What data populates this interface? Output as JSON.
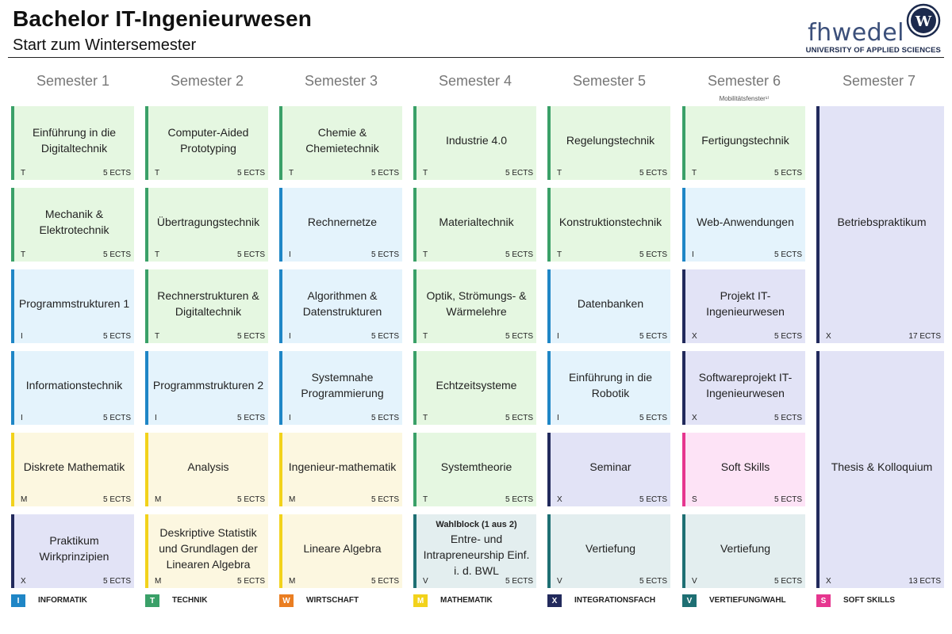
{
  "header": {
    "title": "Bachelor IT-Ingenieurwesen",
    "subtitle": "Start zum Wintersemester"
  },
  "logo": {
    "word_h": "fh",
    "word_rest": "wedel",
    "seal_letter": "W",
    "subtitle": "UNIVERSITY OF APPLIED SCIENCES"
  },
  "semesters": [
    {
      "label": "Semester 1"
    },
    {
      "label": "Semester 2"
    },
    {
      "label": "Semester 3"
    },
    {
      "label": "Semester 4"
    },
    {
      "label": "Semester 5"
    },
    {
      "label": "Semester 6",
      "note": "Mobilitätsfenster¹⁾"
    },
    {
      "label": "Semester 7"
    }
  ],
  "columns": [
    [
      {
        "name": "Einführung in die Digitaltechnik",
        "cat": "T",
        "ects": "5 ECTS"
      },
      {
        "name": "Mechanik & Elektrotechnik",
        "cat": "T",
        "ects": "5 ECTS"
      },
      {
        "name": "Programmstrukturen 1",
        "cat": "I",
        "ects": "5 ECTS"
      },
      {
        "name": "Informationstechnik",
        "cat": "I",
        "ects": "5 ECTS"
      },
      {
        "name": "Diskrete Mathematik",
        "cat": "M",
        "ects": "5 ECTS"
      },
      {
        "name": "Praktikum Wirkprinzipien",
        "cat": "X",
        "ects": "5 ECTS"
      }
    ],
    [
      {
        "name": "Computer-Aided Prototyping",
        "cat": "T",
        "ects": "5 ECTS"
      },
      {
        "name": "Übertragungstechnik",
        "cat": "T",
        "ects": "5 ECTS"
      },
      {
        "name": "Rechnerstrukturen & Digitaltechnik",
        "cat": "T",
        "ects": "5 ECTS"
      },
      {
        "name": "Programmstrukturen 2",
        "cat": "I",
        "ects": "5 ECTS"
      },
      {
        "name": "Analysis",
        "cat": "M",
        "ects": "5 ECTS"
      },
      {
        "name": "Deskriptive Statistik und Grundlagen der Linearen Algebra",
        "cat": "M",
        "ects": "5 ECTS"
      }
    ],
    [
      {
        "name": "Chemie & Chemietechnik",
        "cat": "T",
        "ects": "5 ECTS"
      },
      {
        "name": "Rechnernetze",
        "cat": "I",
        "ects": "5 ECTS"
      },
      {
        "name": "Algorithmen & Datenstrukturen",
        "cat": "I",
        "ects": "5 ECTS"
      },
      {
        "name": "Systemnahe Programmierung",
        "cat": "I",
        "ects": "5 ECTS"
      },
      {
        "name": "Ingenieur-mathematik",
        "cat": "M",
        "ects": "5 ECTS"
      },
      {
        "name": "Lineare Algebra",
        "cat": "M",
        "ects": "5 ECTS"
      }
    ],
    [
      {
        "name": "Industrie 4.0",
        "cat": "T",
        "ects": "5 ECTS"
      },
      {
        "name": "Materialtechnik",
        "cat": "T",
        "ects": "5 ECTS"
      },
      {
        "name": "Optik, Strömungs- & Wärmelehre",
        "cat": "T",
        "ects": "5 ECTS"
      },
      {
        "name": "Echtzeitsysteme",
        "cat": "T",
        "ects": "5 ECTS"
      },
      {
        "name": "Systemtheorie",
        "cat": "T",
        "ects": "5 ECTS"
      },
      {
        "name": "Entre- und Intrapreneurship Einf. i. d. BWL",
        "note": "Wahlblock (1 aus 2)",
        "cat": "V",
        "ects": "5 ECTS"
      }
    ],
    [
      {
        "name": "Regelungstechnik",
        "cat": "T",
        "ects": "5 ECTS"
      },
      {
        "name": "Konstruktionstechnik",
        "cat": "T",
        "ects": "5 ECTS"
      },
      {
        "name": "Datenbanken",
        "cat": "I",
        "ects": "5 ECTS"
      },
      {
        "name": "Einführung in die Robotik",
        "cat": "I",
        "ects": "5 ECTS"
      },
      {
        "name": "Seminar",
        "cat": "X",
        "ects": "5 ECTS"
      },
      {
        "name": "Vertiefung",
        "cat": "V",
        "ects": "5 ECTS"
      }
    ],
    [
      {
        "name": "Fertigungstechnik",
        "cat": "T",
        "ects": "5 ECTS"
      },
      {
        "name": "Web-Anwendungen",
        "cat": "I",
        "ects": "5 ECTS"
      },
      {
        "name": "Projekt IT-Ingenieurwesen",
        "cat": "X",
        "ects": "5 ECTS"
      },
      {
        "name": "Softwareprojekt IT-Ingenieurwesen",
        "cat": "X",
        "ects": "5 ECTS"
      },
      {
        "name": "Soft Skills",
        "cat": "S",
        "ects": "5 ECTS"
      },
      {
        "name": "Vertiefung",
        "cat": "V",
        "ects": "5 ECTS"
      }
    ]
  ],
  "semester7": [
    {
      "name": "Betriebspraktikum",
      "cat": "X",
      "ects": "17 ECTS"
    },
    {
      "name": "Thesis & Kolloquium",
      "cat": "X",
      "ects": "13 ECTS"
    }
  ],
  "legend": [
    {
      "code": "I",
      "label": "INFORMATIK",
      "color": "#1f86c6"
    },
    {
      "code": "T",
      "label": "TECHNIK",
      "color": "#3aa068"
    },
    {
      "code": "W",
      "label": "WIRTSCHAFT",
      "color": "#ea7e22"
    },
    {
      "code": "M",
      "label": "MATHEMATIK",
      "color": "#f2d21b"
    },
    {
      "code": "X",
      "label": "INTEGRATIONSFACH",
      "color": "#222a5c"
    },
    {
      "code": "V",
      "label": "VERTIEFUNG/WAHL",
      "color": "#1e6f73"
    },
    {
      "code": "S",
      "label": "SOFT SKILLS",
      "color": "#e6368f"
    }
  ]
}
